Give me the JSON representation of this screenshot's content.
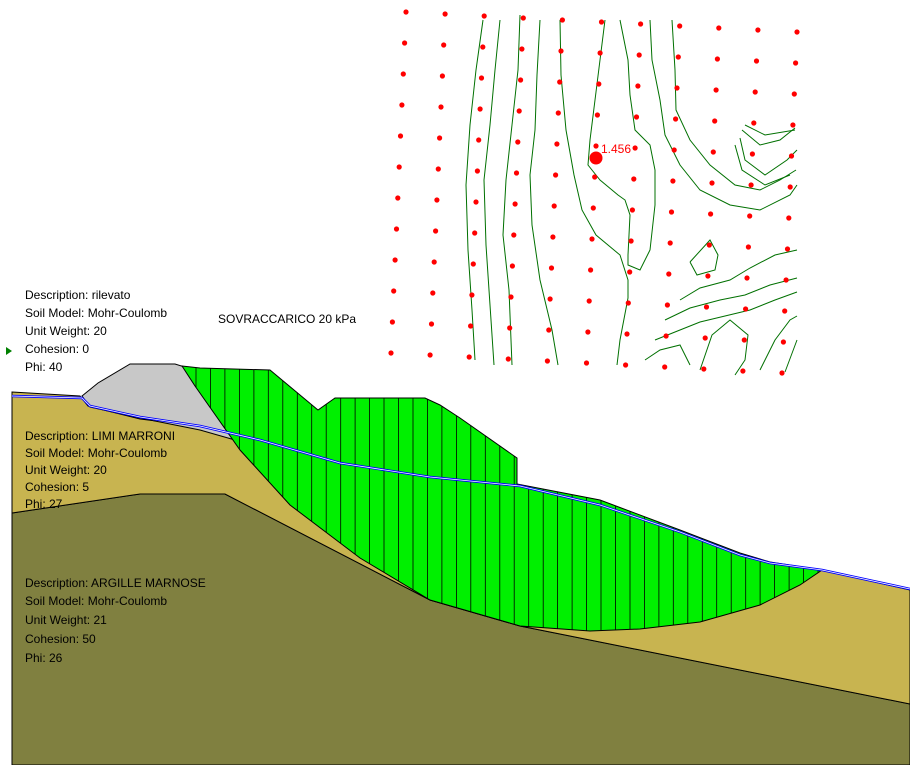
{
  "colors": {
    "background": "#ffffff",
    "rilevato": "#c8c8c8",
    "limi_marroni": "#c8b450",
    "argille_marnose": "#808040",
    "slip_mass": "#00f000",
    "contour": "#007000",
    "grid_points": "#ff0000",
    "water_table": "#0000ff"
  },
  "materials": [
    {
      "description": "Description: rilevato",
      "soil_model": "Soil Model: Mohr-Coulomb",
      "unit_weight": "Unit Weight: 20",
      "cohesion": "Cohesion: 0",
      "phi": "Phi: 40"
    },
    {
      "description": "Description: LIMI MARRONI",
      "soil_model": "Soil Model: Mohr-Coulomb",
      "unit_weight": "Unit Weight: 20",
      "cohesion": "Cohesion: 5",
      "phi": "Phi: 27"
    },
    {
      "description": "Description: ARGILLE MARNOSE",
      "soil_model": "Soil Model: Mohr-Coulomb",
      "unit_weight": "Unit Weight: 21",
      "cohesion": "Cohesion: 50",
      "phi": "Phi: 26"
    }
  ],
  "load_label": "SOVRACCARICO 20 kPa",
  "critical_factor_of_safety": "1.456",
  "grid": {
    "columns": 11,
    "rows": 12
  },
  "slice_count": 44,
  "icons": {
    "left_marker": "triangle-marker-icon",
    "critical_center": "critical-center-dot-icon"
  }
}
